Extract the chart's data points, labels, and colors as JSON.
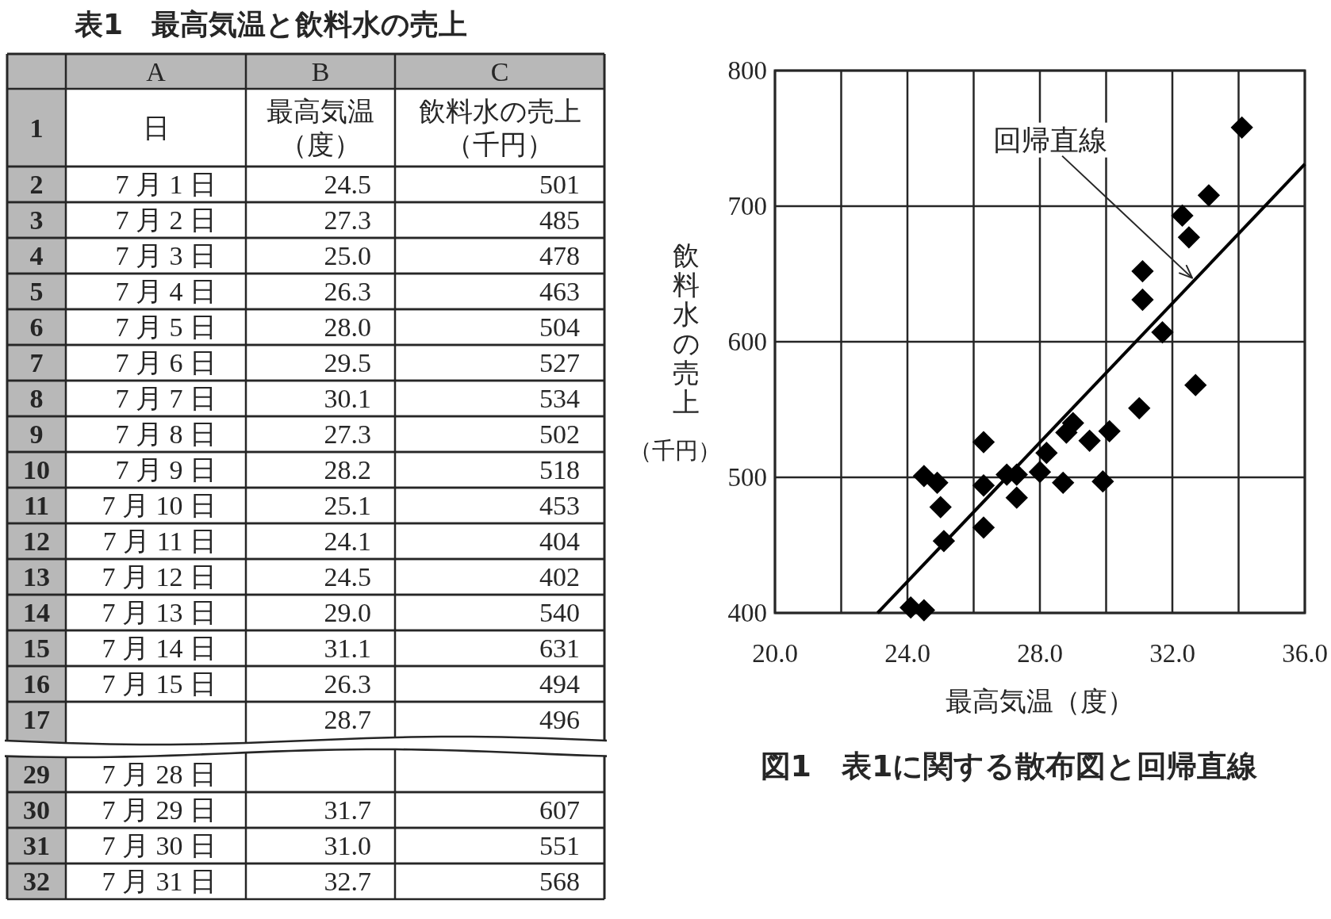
{
  "chart_data": [
    {
      "type": "heatmap",
      "title": "表1　最高気温と飲料水の売上",
      "categories": [
        "A",
        "B",
        "C"
      ],
      "y_categories": [
        "1",
        "2",
        "3",
        "4",
        "5",
        "6",
        "7",
        "8",
        "9",
        "10",
        "11",
        "12",
        "13",
        "14",
        "15",
        "16",
        "17",
        "29",
        "30",
        "31",
        "32"
      ],
      "cells": [
        [
          null,
          null,
          null
        ],
        [
          null,
          null,
          null
        ],
        [
          null,
          null,
          null
        ],
        [
          null,
          null,
          null
        ],
        [
          null,
          null,
          null
        ],
        [
          null,
          null,
          null
        ],
        [
          null,
          null,
          null
        ],
        [
          null,
          null,
          null
        ],
        [
          null,
          null,
          null
        ],
        [
          null,
          null,
          null
        ],
        [
          null,
          null,
          null
        ],
        [
          null,
          null,
          null
        ],
        [
          null,
          null,
          null
        ],
        [
          null,
          null,
          null
        ],
        [
          null,
          null,
          null
        ],
        [
          null,
          null,
          null
        ],
        [
          null,
          null,
          null
        ],
        [
          null,
          null,
          null
        ],
        [
          null,
          null,
          null
        ],
        [
          null,
          null,
          null
        ],
        [
          null,
          null,
          null
        ]
      ],
      "cell_labels": [
        [
          "日",
          "最高気温（度）",
          "飲料水の売上（千円）"
        ],
        [
          "7 月 1 日",
          "24.5",
          "501"
        ],
        [
          "7 月 2 日",
          "27.3",
          "485"
        ],
        [
          "7 月 3 日",
          "25.0",
          "478"
        ],
        [
          "7 月 4 日",
          "26.3",
          "463"
        ],
        [
          "7 月 5 日",
          "28.0",
          "504"
        ],
        [
          "7 月 6 日",
          "29.5",
          "527"
        ],
        [
          "7 月 7 日",
          "30.1",
          "534"
        ],
        [
          "7 月 8 日",
          "27.3",
          "502"
        ],
        [
          "7 月 9 日",
          "28.2",
          "518"
        ],
        [
          "7 月 10 日",
          "25.1",
          "453"
        ],
        [
          "7 月 11 日",
          "24.1",
          "404"
        ],
        [
          "7 月 12 日",
          "24.5",
          "402"
        ],
        [
          "7 月 13 日",
          "29.0",
          "540"
        ],
        [
          "7 月 14 日",
          "31.1",
          "631"
        ],
        [
          "7 月 15 日",
          "26.3",
          "494"
        ],
        [
          null,
          "28.7",
          "496"
        ],
        [
          "7 月 28 日",
          null,
          null
        ],
        [
          "7 月 29 日",
          "31.7",
          "607"
        ],
        [
          "7 月 30 日",
          "31.0",
          "551"
        ],
        [
          "7 月 31 日",
          "32.7",
          "568"
        ]
      ]
    },
    {
      "type": "scatter",
      "title": "図1　表1に関する散布図と回帰直線",
      "xlabel": "最高気温（度）",
      "ylabel": "飲料水の売上（千円）",
      "xlim": [
        20,
        36
      ],
      "ylim": [
        400,
        800
      ],
      "xticks": [
        {
          "value": 20,
          "label": "20.0"
        },
        {
          "value": 22,
          "label": null
        },
        {
          "value": 24,
          "label": "24.0"
        },
        {
          "value": 26,
          "label": null
        },
        {
          "value": 28,
          "label": "28.0"
        },
        {
          "value": 30,
          "label": null
        },
        {
          "value": 32,
          "label": "32.0"
        },
        {
          "value": 34,
          "label": null
        },
        {
          "value": 36,
          "label": "36.0"
        }
      ],
      "yticks": [
        400,
        500,
        600,
        700,
        800
      ],
      "grid": true,
      "marker": "diamond",
      "annotations": [
        {
          "text": "回帰直線",
          "x": 32.6,
          "y": 647
        }
      ],
      "series": [
        {
          "type": "scatter",
          "color": "#000000",
          "x": [
            24.5,
            27.3,
            25.0,
            26.3,
            28.0,
            29.5,
            30.1,
            27.3,
            28.2,
            25.1,
            24.1,
            24.5,
            29.0,
            31.1,
            26.3,
            28.7,
            34.1,
            33.1,
            32.3,
            32.5,
            31.1,
            28.8,
            26.3,
            24.9,
            29.9,
            27.0,
            31.7,
            31.0,
            32.7
          ],
          "values": [
            501,
            485,
            478,
            463,
            504,
            527,
            534,
            502,
            518,
            453,
            404,
            402,
            540,
            631,
            494,
            496,
            758,
            708,
            693,
            677,
            652,
            533,
            526,
            496,
            497,
            502,
            607,
            551,
            568
          ]
        },
        {
          "type": "line",
          "color": "#000000",
          "marker": "none",
          "x": [
            23.1,
            36.0
          ],
          "values": [
            400,
            731
          ]
        }
      ]
    }
  ]
}
